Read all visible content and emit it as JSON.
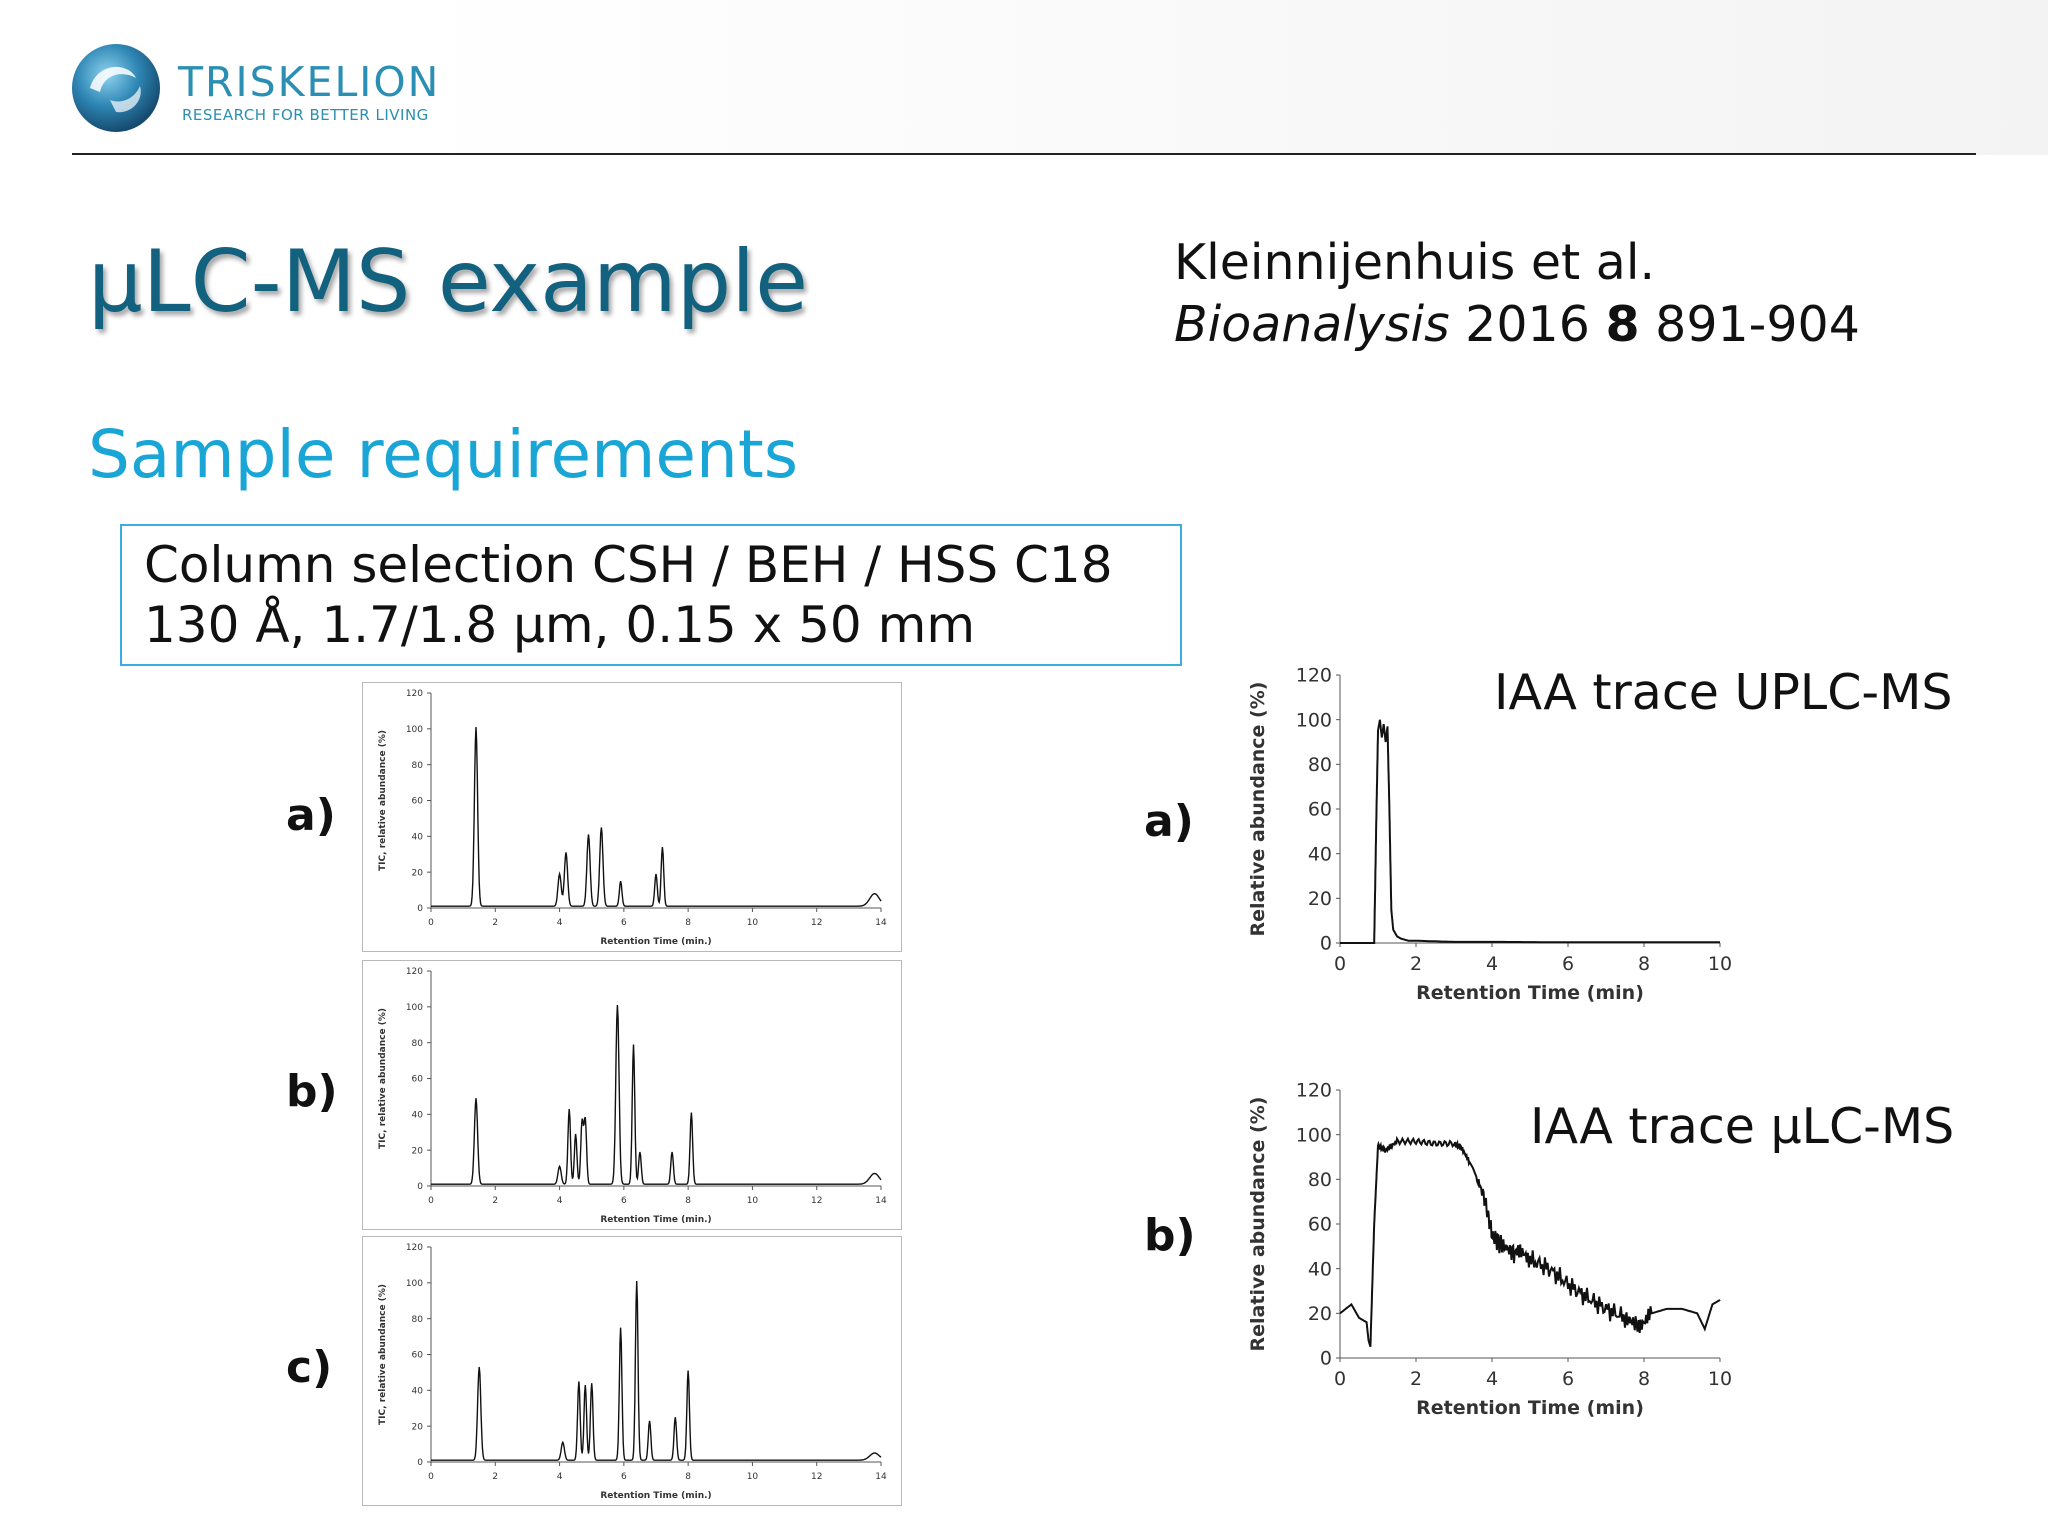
{
  "header": {
    "brand": "TRISKELION",
    "tagline": "RESEARCH FOR BETTER LIVING",
    "brand_color": "#2b8fb3",
    "logo_icon": "triskelion-swirl-logo"
  },
  "title": "μLC-MS example",
  "citation": {
    "authors": "Kleinnijenhuis et al.",
    "journal": "Bioanalysis",
    "year": " 2016 ",
    "volume": "8",
    "pages": " 891-904"
  },
  "subtitle": "Sample requirements",
  "spec": {
    "line1": "Column selection CSH / BEH / HSS C18",
    "line2": "130 Å, 1.7/1.8 μm, 0.15 x 50 mm"
  },
  "colors": {
    "title": "#11617f",
    "subtitle": "#19a6d6",
    "box_border": "#3aaee0",
    "trace": "#111111"
  },
  "labels": {
    "trace_uplc": "IAA trace UPLC-MS",
    "trace_ulc": "IAA trace μLC-MS"
  },
  "chart_data": [
    {
      "id": "left-a",
      "panel_label": "a)",
      "type": "line",
      "xlabel": "Retention Time (min.)",
      "ylabel": "TIC, relative abundance (%)",
      "xlim": [
        0,
        14
      ],
      "ylim": [
        0,
        120
      ],
      "xticks": [
        0,
        2,
        4,
        6,
        8,
        10,
        12,
        14
      ],
      "yticks": [
        0,
        20,
        40,
        60,
        80,
        100,
        120
      ],
      "baseline": 1,
      "peaks": [
        [
          1.4,
          100,
          0.05
        ],
        [
          4.0,
          18,
          0.05
        ],
        [
          4.2,
          30,
          0.05
        ],
        [
          4.9,
          40,
          0.05
        ],
        [
          5.3,
          44,
          0.05
        ],
        [
          5.9,
          14,
          0.04
        ],
        [
          7.0,
          18,
          0.04
        ],
        [
          7.2,
          33,
          0.04
        ],
        [
          13.8,
          7,
          0.15
        ]
      ]
    },
    {
      "id": "left-b",
      "panel_label": "b)",
      "type": "line",
      "xlabel": "Retention Time (min.)",
      "ylabel": "TIC, relative abundance (%)",
      "xlim": [
        0,
        14
      ],
      "ylim": [
        0,
        120
      ],
      "xticks": [
        0,
        2,
        4,
        6,
        8,
        10,
        12,
        14
      ],
      "yticks": [
        0,
        20,
        40,
        60,
        80,
        100,
        120
      ],
      "baseline": 1,
      "peaks": [
        [
          1.4,
          48,
          0.05
        ],
        [
          4.0,
          10,
          0.05
        ],
        [
          4.3,
          42,
          0.04
        ],
        [
          4.5,
          28,
          0.04
        ],
        [
          4.7,
          35,
          0.04
        ],
        [
          4.8,
          36,
          0.04
        ],
        [
          5.8,
          100,
          0.05
        ],
        [
          6.3,
          78,
          0.04
        ],
        [
          6.5,
          18,
          0.04
        ],
        [
          7.5,
          18,
          0.04
        ],
        [
          8.1,
          40,
          0.04
        ],
        [
          13.8,
          6,
          0.15
        ]
      ]
    },
    {
      "id": "left-c",
      "panel_label": "c)",
      "type": "line",
      "xlabel": "Retention Time (min.)",
      "ylabel": "TIC, relative abundance (%)",
      "xlim": [
        0,
        14
      ],
      "ylim": [
        0,
        120
      ],
      "xticks": [
        0,
        2,
        4,
        6,
        8,
        10,
        12,
        14
      ],
      "yticks": [
        0,
        20,
        40,
        60,
        80,
        100,
        120
      ],
      "baseline": 1,
      "peaks": [
        [
          1.5,
          52,
          0.05
        ],
        [
          4.1,
          10,
          0.05
        ],
        [
          4.6,
          44,
          0.04
        ],
        [
          4.8,
          42,
          0.04
        ],
        [
          5.0,
          43,
          0.04
        ],
        [
          5.9,
          74,
          0.04
        ],
        [
          6.4,
          100,
          0.04
        ],
        [
          6.8,
          22,
          0.04
        ],
        [
          7.6,
          24,
          0.04
        ],
        [
          8.0,
          50,
          0.04
        ],
        [
          13.8,
          4,
          0.15
        ]
      ]
    },
    {
      "id": "right-a",
      "panel_label": "a)",
      "type": "line",
      "xlabel": "Retention Time (min)",
      "ylabel": "Relative abundance (%)",
      "xlim": [
        0,
        10
      ],
      "ylim": [
        0,
        120
      ],
      "xticks": [
        0,
        2,
        4,
        6,
        8,
        10
      ],
      "yticks": [
        0,
        20,
        40,
        60,
        80,
        100,
        120
      ],
      "x": [
        0,
        0.9,
        0.95,
        1.0,
        1.05,
        1.1,
        1.15,
        1.2,
        1.25,
        1.3,
        1.35,
        1.4,
        1.5,
        1.6,
        1.8,
        2.0,
        3,
        4,
        6,
        8,
        10
      ],
      "y": [
        0,
        0,
        50,
        95,
        100,
        92,
        98,
        90,
        97,
        60,
        15,
        6,
        3,
        2,
        1,
        1,
        0.5,
        0.5,
        0.3,
        0.3,
        0.3
      ]
    },
    {
      "id": "right-b",
      "panel_label": "b)",
      "type": "line",
      "xlabel": "Retention Time (min)",
      "ylabel": "Relative abundance (%)",
      "xlim": [
        0,
        10
      ],
      "ylim": [
        0,
        120
      ],
      "xticks": [
        0,
        2,
        4,
        6,
        8,
        10
      ],
      "yticks": [
        0,
        20,
        40,
        60,
        80,
        100,
        120
      ],
      "x": [
        0,
        0.3,
        0.5,
        0.7,
        0.75,
        0.8,
        0.9,
        1.0,
        1.2,
        1.5,
        2.0,
        2.5,
        3.0,
        3.2,
        3.5,
        3.8,
        4.0,
        4.3,
        4.6,
        5.0,
        5.5,
        6.0,
        6.5,
        7.0,
        7.5,
        7.8,
        8.2,
        8.6,
        9.0,
        9.4,
        9.6,
        9.8,
        10.0
      ],
      "y": [
        20,
        24,
        18,
        16,
        8,
        5,
        60,
        95,
        93,
        97,
        97,
        96,
        96,
        94,
        85,
        72,
        55,
        50,
        47,
        44,
        40,
        33,
        27,
        22,
        18,
        15,
        20,
        22,
        22,
        20,
        13,
        24,
        26
      ]
    }
  ]
}
